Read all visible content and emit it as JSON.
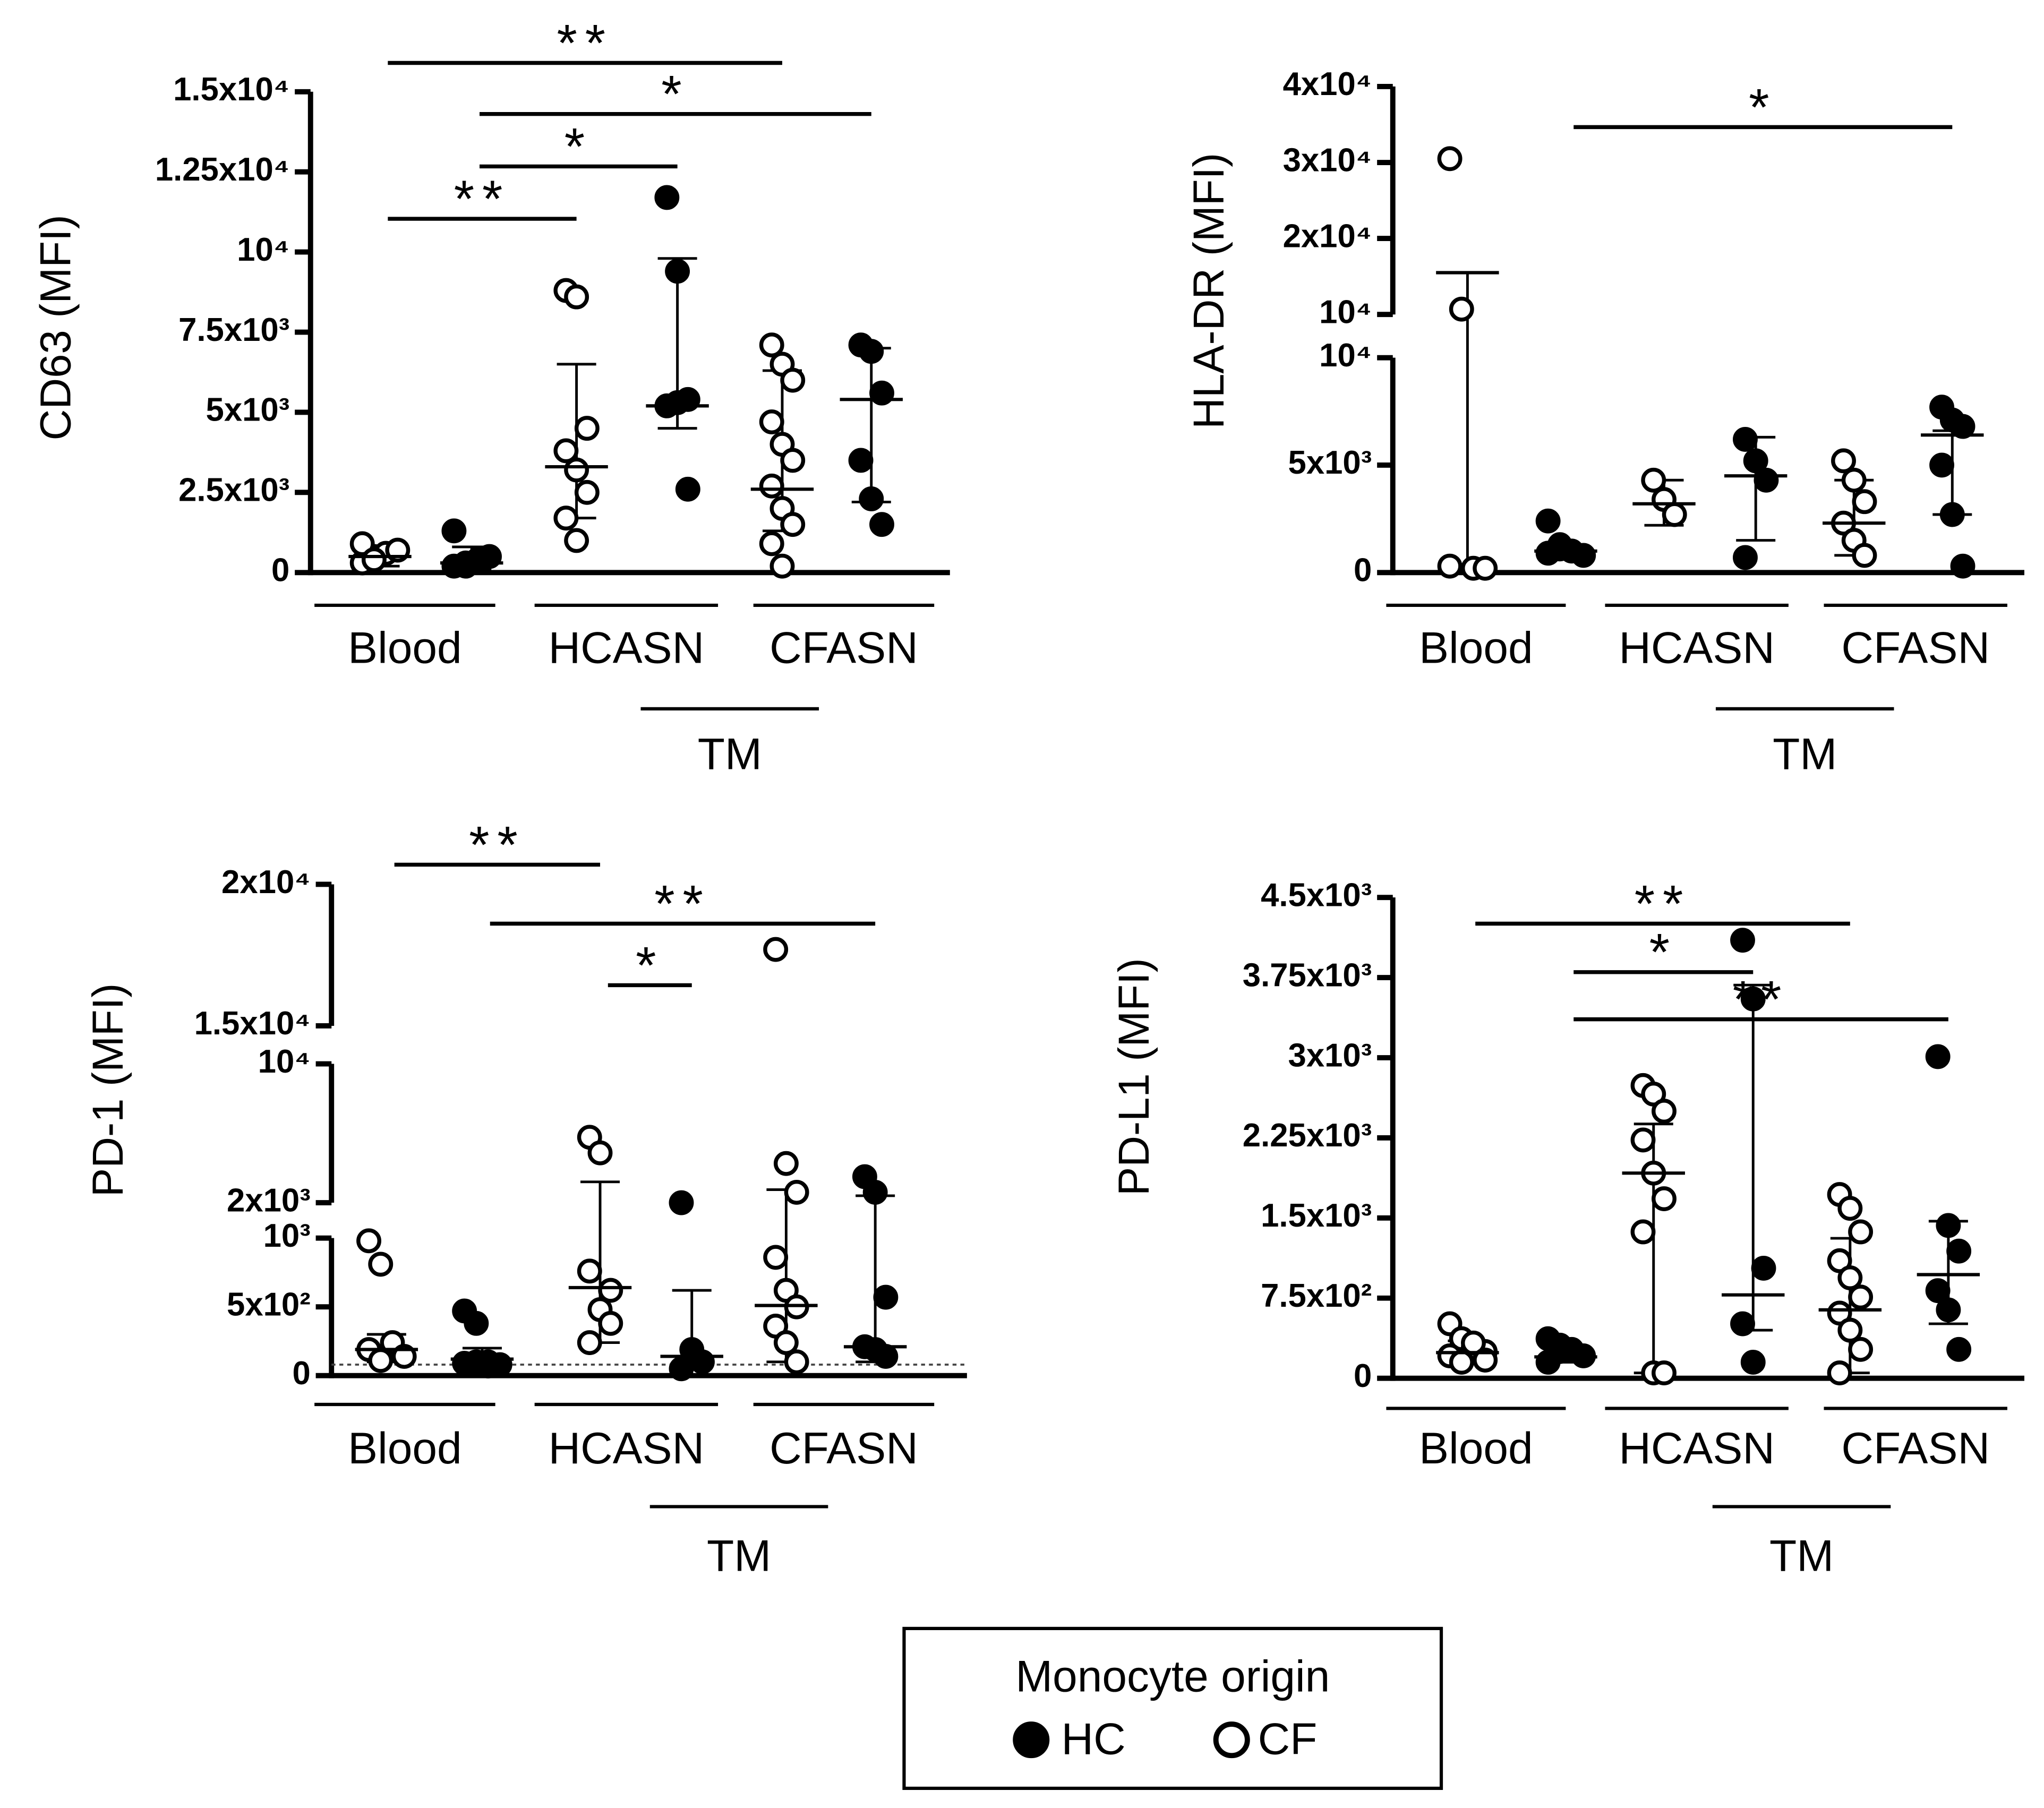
{
  "legend_title": "Monocyte origin",
  "chart_data": [
    {
      "type": "dot",
      "y_label": "CD63 (MFI)",
      "categories": [
        "Blood",
        "HCASN",
        "CFASN"
      ],
      "group_label": {
        "label": "TM",
        "between": [
          3,
          4
        ]
      },
      "ylim": [
        0,
        15000
      ],
      "yticks": [
        0,
        {
          "value": 2500,
          "label": "2.5x10³"
        },
        {
          "value": 5000,
          "label": "5x10³"
        },
        {
          "value": 7500,
          "label": "7.5x10³"
        },
        {
          "value": 10000,
          "label": "10⁴"
        },
        {
          "value": 12500,
          "label": "1.25x10⁴"
        },
        {
          "value": 15000,
          "label": "1.5x10⁴"
        }
      ],
      "series": [
        {
          "name": "HC",
          "marker": "filled",
          "color": "#000000",
          "values": [
            [
              200,
              300,
              400,
              500,
              1300,
              200
            ],
            [
              11700,
              9400,
              5400,
              5200,
              5300,
              2600
            ],
            [
              7100,
              6900,
              5600,
              3500,
              2300,
              1500
            ]
          ],
          "center": [
            300,
            5200,
            5400
          ],
          "range": [
            [
              100,
              800
            ],
            [
              4500,
              9800
            ],
            [
              2200,
              7000
            ]
          ]
        },
        {
          "name": "CF",
          "marker": "open",
          "color": "#000000",
          "values": [
            [
              300,
              500,
              600,
              700,
              900,
              400
            ],
            [
              8800,
              8600,
              4500,
              3800,
              3200,
              2500,
              1700,
              1000
            ],
            [
              7100,
              6500,
              6000,
              4700,
              4000,
              3500,
              2700,
              2000,
              1500,
              900,
              200
            ]
          ],
          "center": [
            500,
            3300,
            2600
          ],
          "range": [
            [
              200,
              800
            ],
            [
              1700,
              6500
            ],
            [
              1300,
              6300
            ]
          ]
        }
      ],
      "brackets": [
        {
          "label": "**",
          "between": [
            0,
            4
          ]
        },
        {
          "label": "*",
          "between": [
            1,
            5
          ]
        },
        {
          "label": "*",
          "between": [
            1,
            3
          ]
        },
        {
          "label": "**",
          "between": [
            0,
            2
          ]
        }
      ]
    },
    {
      "type": "dot",
      "y_label": "HLA-DR (MFI)",
      "categories": [
        "Blood",
        "HCASN",
        "CFASN"
      ],
      "group_label": {
        "label": "TM",
        "between": [
          3,
          4
        ]
      },
      "y_segments": [
        {
          "ylim": [
            0,
            10000
          ],
          "yticks": [
            0,
            {
              "value": 5000,
              "label": "5x10³"
            },
            {
              "value": 10000,
              "label": "10⁴"
            }
          ]
        },
        {
          "ylim": [
            10000,
            40000
          ],
          "yticks": [
            {
              "value": 10000,
              "label": "10⁴"
            },
            {
              "value": 20000,
              "label": "2x10⁴"
            },
            {
              "value": 30000,
              "label": "3x10⁴"
            },
            {
              "value": 40000,
              "label": "4x10⁴"
            }
          ]
        }
      ],
      "series": [
        {
          "name": "HC",
          "marker": "filled",
          "color": "#000000",
          "values": [
            [
              2400,
              1300,
              1000,
              800,
              900,
              1100
            ],
            [
              6200,
              5200,
              4300,
              700
            ],
            [
              7700,
              7100,
              6800,
              5000,
              2700,
              300
            ]
          ],
          "center": [
            1000,
            4500,
            6400
          ],
          "range": [
            [
              800,
              1300
            ],
            [
              1500,
              6300
            ],
            [
              2700,
              6600
            ]
          ]
        },
        {
          "name": "CF",
          "marker": "open",
          "color": "#000000",
          "values": [
            [
              30500,
              10700,
              200,
              200,
              300
            ],
            [
              4300,
              3400,
              2700
            ],
            [
              5200,
              4300,
              3300,
              2300,
              1500,
              800
            ]
          ],
          "center": [
            15500,
            3200,
            2300
          ],
          "range": [
            [
              0,
              15500
            ],
            [
              2200,
              4300
            ],
            [
              800,
              4300
            ]
          ]
        }
      ],
      "brackets": [
        {
          "label": "*",
          "between": [
            1,
            5
          ]
        }
      ]
    },
    {
      "type": "dot",
      "y_label": "PD-1 (MFI)",
      "categories": [
        "Blood",
        "HCASN",
        "CFASN"
      ],
      "group_label": {
        "label": "TM",
        "between": [
          3,
          4
        ]
      },
      "reference_line": 80,
      "y_segments": [
        {
          "ylim": [
            0,
            1000
          ],
          "yticks": [
            0,
            {
              "value": 500,
              "label": "5x10²"
            },
            {
              "value": 1000,
              "label": "10³"
            }
          ]
        },
        {
          "ylim": [
            2000,
            10000
          ],
          "yticks": [
            {
              "value": 2000,
              "label": "2x10³"
            },
            {
              "value": 10000,
              "label": "10⁴"
            }
          ]
        },
        {
          "ylim": [
            15000,
            20000
          ],
          "yticks": [
            {
              "value": 15000,
              "label": "1.5x10⁴"
            },
            {
              "value": 20000,
              "label": "2x10⁴"
            }
          ]
        }
      ],
      "series": [
        {
          "name": "HC",
          "marker": "filled",
          "color": "#000000",
          "values": [
            [
              470,
              380,
              100,
              80,
              90,
              100,
              70
            ],
            [
              2000,
              190,
              100,
              50
            ],
            [
              3500,
              2600,
              570,
              210,
              190,
              140
            ]
          ],
          "center": [
            120,
            140,
            210
          ],
          "range": [
            [
              70,
              200
            ],
            [
              50,
              620
            ],
            [
              100,
              2400
            ]
          ]
        },
        {
          "name": "CF",
          "marker": "open",
          "color": "#000000",
          "values": [
            [
              980,
              810,
              240,
              140,
              190,
              110
            ],
            [
              5770,
              4870,
              620,
              760,
              480,
              380,
              240
            ],
            [
              17700,
              4260,
              2600,
              860,
              620,
              500,
              360,
              240,
              100
            ]
          ],
          "center": [
            190,
            640,
            510
          ],
          "range": [
            [
              100,
              300
            ],
            [
              240,
              3200
            ],
            [
              100,
              2750
            ]
          ]
        }
      ],
      "brackets": [
        {
          "label": "**",
          "between": [
            0,
            2
          ]
        },
        {
          "label": "**",
          "between": [
            1,
            5
          ]
        },
        {
          "label": "*",
          "between": [
            2,
            3
          ]
        }
      ]
    },
    {
      "type": "dot",
      "y_label": "PD-L1 (MFI)",
      "categories": [
        "Blood",
        "HCASN",
        "CFASN"
      ],
      "group_label": {
        "label": "TM",
        "between": [
          3,
          4
        ]
      },
      "ylim": [
        0,
        4500
      ],
      "yticks": [
        0,
        {
          "value": 750,
          "label": "7.5x10²"
        },
        {
          "value": 1500,
          "label": "1.5x10³"
        },
        {
          "value": 2250,
          "label": "2.25x10³"
        },
        {
          "value": 3000,
          "label": "3x10³"
        },
        {
          "value": 3750,
          "label": "3.75x10³"
        },
        {
          "value": 4500,
          "label": "4.5x10³"
        }
      ],
      "series": [
        {
          "name": "HC",
          "marker": "filled",
          "color": "#000000",
          "values": [
            [
              370,
              310,
              270,
              210,
              150,
              250
            ],
            [
              4100,
              3550,
              1030,
              510,
              150
            ],
            [
              3010,
              1430,
              1190,
              820,
              640,
              270
            ]
          ],
          "center": [
            200,
            780,
            970
          ],
          "range": [
            [
              150,
              300
            ],
            [
              450,
              3680
            ],
            [
              510,
              1470
            ]
          ]
        },
        {
          "name": "CF",
          "marker": "open",
          "color": "#000000",
          "values": [
            [
              510,
              370,
              290,
              250,
              210,
              150,
              330,
              170
            ],
            [
              2740,
              2660,
              2500,
              2230,
              1920,
              1680,
              1370,
              50,
              50
            ],
            [
              1720,
              1590,
              1370,
              1100,
              940,
              760,
              610,
              450,
              270,
              50
            ]
          ],
          "center": [
            240,
            1920,
            640
          ],
          "range": [
            [
              150,
              350
            ],
            [
              50,
              2380
            ],
            [
              50,
              1310
            ]
          ]
        }
      ],
      "brackets": [
        {
          "label": "**",
          "between": [
            0,
            4
          ]
        },
        {
          "label": "*",
          "between": [
            1,
            3
          ]
        },
        {
          "label": "**",
          "between": [
            1,
            5
          ]
        }
      ]
    }
  ]
}
